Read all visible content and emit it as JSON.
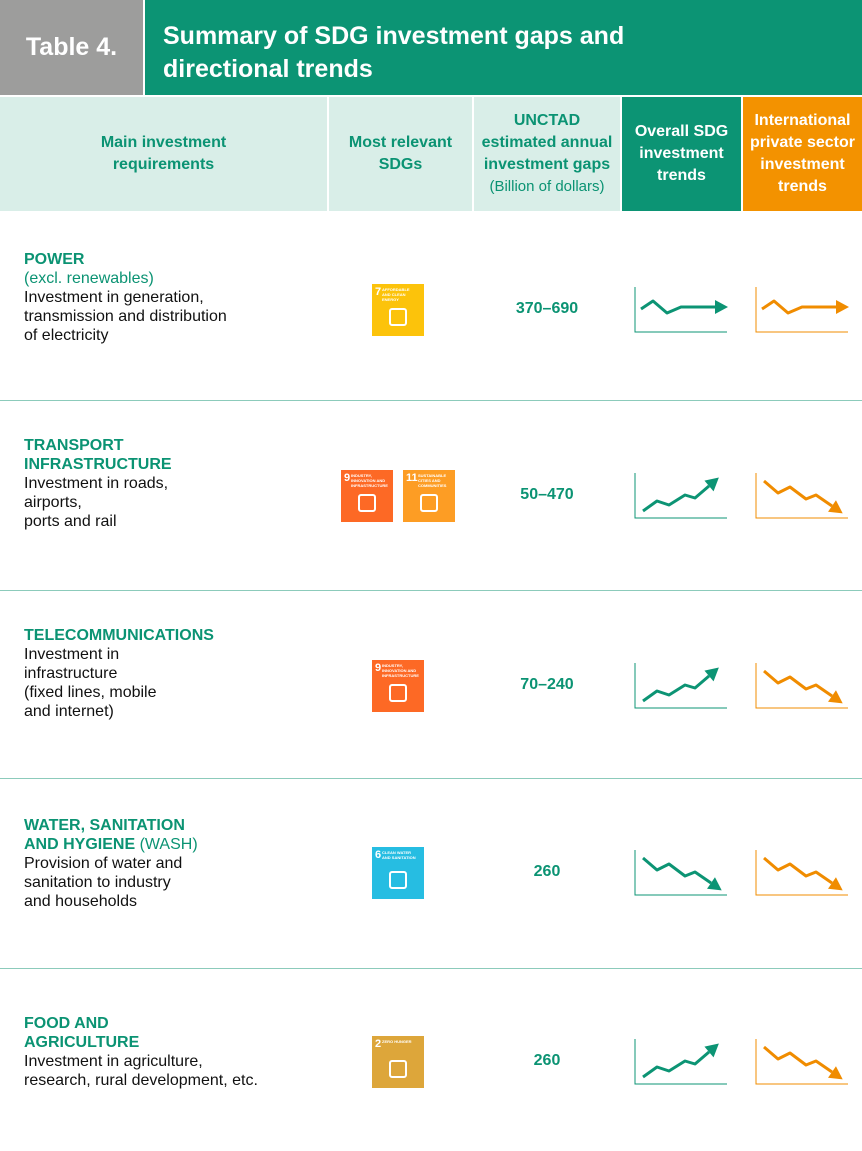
{
  "header": {
    "table_label": "Table 4.",
    "title": [
      "Summary of SDG investment gaps and",
      "directional trends"
    ]
  },
  "table": {
    "columns": [
      {
        "lines": [
          "Main investment",
          "requirements"
        ]
      },
      {
        "lines": [
          "Most relevant",
          "SDGs"
        ]
      },
      {
        "lines": [
          "UNCTAD",
          "estimated annual",
          "investment gaps"
        ],
        "unit": "(Billion of dollars)"
      },
      {
        "lines": [
          "Overall SDG",
          "investment",
          "trends"
        ]
      },
      {
        "lines": [
          "International",
          "private sector",
          "investment",
          "trends"
        ]
      }
    ],
    "rows": [
      {
        "title": [
          "POWER"
        ],
        "note": "(excl. renewables)",
        "description": [
          "Investment in generation,",
          "transmission and distribution",
          "of electricity"
        ],
        "sdgs": [
          {
            "number": "7",
            "label": "AFFORDABLE AND CLEAN ENERGY"
          }
        ],
        "gap": "370–690"
      },
      {
        "title": [
          "TRANSPORT",
          "INFRASTRUCTURE"
        ],
        "description": [
          "Investment in roads,",
          "airports,",
          "ports and rail"
        ],
        "sdgs": [
          {
            "number": "9",
            "label": "INDUSTRY, INNOVATION AND INFRASTRUCTURE"
          },
          {
            "number": "11",
            "label": "SUSTAINABLE CITIES AND COMMUNITIES"
          }
        ],
        "gap": "50–470"
      },
      {
        "title": [
          "TELECOMMUNICATIONS"
        ],
        "description": [
          "Investment in",
          "infrastructure",
          "(fixed lines, mobile",
          "and internet)"
        ],
        "sdgs": [
          {
            "number": "9",
            "label": "INDUSTRY, INNOVATION AND INFRASTRUCTURE"
          }
        ],
        "gap": "70–240"
      },
      {
        "title": [
          "WATER, SANITATION",
          "AND HYGIENE"
        ],
        "title_suffix": "(WASH)",
        "description": [
          "Provision of water and",
          "sanitation to industry",
          "and households"
        ],
        "sdgs": [
          {
            "number": "6",
            "label": "CLEAN WATER AND SANITATION"
          }
        ],
        "gap": "260"
      },
      {
        "title": [
          "FOOD AND",
          "AGRICULTURE"
        ],
        "description": [
          "Investment in agriculture,",
          "research, rural development, etc."
        ],
        "sdgs": [
          {
            "number": "2",
            "label": "ZERO HUNGER"
          }
        ],
        "gap": "260"
      }
    ]
  }
}
